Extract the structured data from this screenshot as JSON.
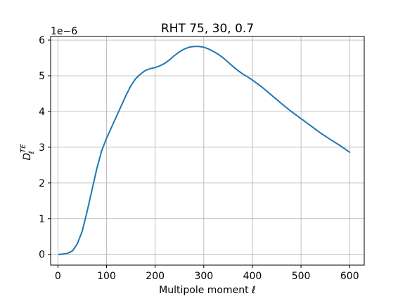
{
  "chart_data": {
    "type": "line",
    "title": "RHT 75, 30, 0.7",
    "xlabel": "Multipole moment ℓ",
    "ylabel_main": "D",
    "ylabel_sub": "ℓ",
    "ylabel_sup": "TE",
    "offset_text": "1e−6",
    "xlim": [
      -15,
      630
    ],
    "ylim": [
      -0.3,
      6.1
    ],
    "x_ticks": [
      0,
      100,
      200,
      300,
      400,
      500,
      600
    ],
    "y_ticks": [
      0,
      1,
      2,
      3,
      4,
      5,
      6
    ],
    "grid": true,
    "line_color": "#1f77b4",
    "series": [
      {
        "x": [
          2,
          10,
          20,
          30,
          40,
          50,
          60,
          70,
          80,
          90,
          100,
          110,
          120,
          130,
          140,
          150,
          160,
          170,
          180,
          190,
          200,
          210,
          220,
          230,
          240,
          250,
          260,
          270,
          280,
          290,
          300,
          310,
          320,
          330,
          340,
          350,
          360,
          370,
          380,
          390,
          400,
          420,
          440,
          460,
          480,
          500,
          520,
          540,
          560,
          580,
          600
        ],
        "y": [
          0.0,
          0.01,
          0.03,
          0.1,
          0.3,
          0.65,
          1.2,
          1.8,
          2.4,
          2.9,
          3.25,
          3.55,
          3.85,
          4.15,
          4.45,
          4.72,
          4.92,
          5.05,
          5.15,
          5.2,
          5.23,
          5.28,
          5.35,
          5.45,
          5.57,
          5.67,
          5.75,
          5.8,
          5.82,
          5.82,
          5.8,
          5.75,
          5.68,
          5.6,
          5.5,
          5.38,
          5.26,
          5.15,
          5.05,
          4.97,
          4.88,
          4.68,
          4.45,
          4.22,
          4.0,
          3.8,
          3.6,
          3.4,
          3.22,
          3.05,
          2.86
        ]
      }
    ]
  }
}
